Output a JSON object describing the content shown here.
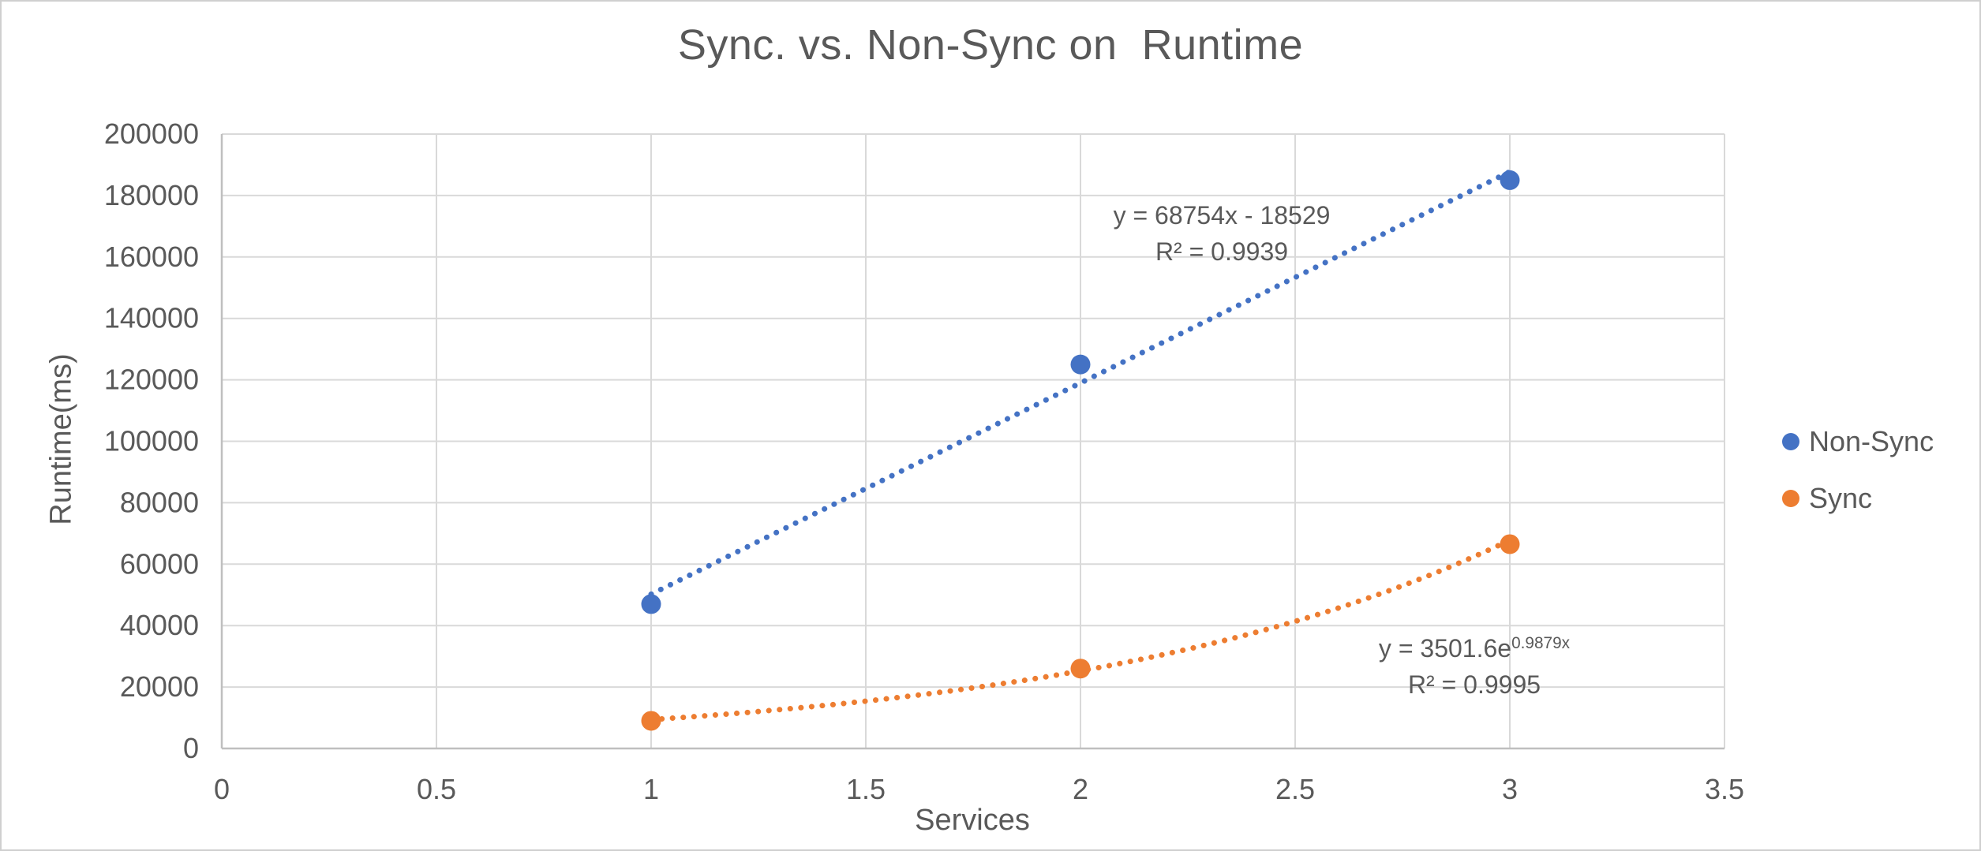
{
  "chart_data": {
    "type": "scatter",
    "title": "Sync. vs. Non-Sync on  Runtime",
    "xlabel": "Services",
    "ylabel": "Runtime(ms)",
    "xlim": [
      0,
      3.5
    ],
    "ylim": [
      0,
      200000
    ],
    "x_tick_labels": [
      "0",
      "0.5",
      "1",
      "1.5",
      "2",
      "2.5",
      "3",
      "3.5"
    ],
    "y_tick_labels": [
      "0",
      "20000",
      "40000",
      "60000",
      "80000",
      "100000",
      "120000",
      "140000",
      "160000",
      "180000",
      "200000"
    ],
    "grid": true,
    "legend_position": "right",
    "colors": {
      "gridline": "#D9D9D9",
      "axis_line": "#BFBFBF",
      "text": "#595959"
    },
    "series": [
      {
        "name": "Non-Sync",
        "color": "#4472C4",
        "x": [
          1,
          2,
          3
        ],
        "y": [
          47000,
          125000,
          185000
        ],
        "trendline": {
          "type": "linear",
          "slope": 68754,
          "intercept": -18529,
          "range": [
            1,
            3
          ],
          "style": "dotted"
        },
        "equation": "y = 68754x - 18529",
        "r_squared": "R² = 0.9939"
      },
      {
        "name": "Sync",
        "color": "#ED7D31",
        "x": [
          1,
          2,
          3
        ],
        "y": [
          9000,
          26000,
          66500
        ],
        "trendline": {
          "type": "exponential",
          "a": 3501.6,
          "b": 0.9879,
          "range": [
            1,
            3
          ],
          "style": "dotted"
        },
        "equation_base": "y = 3501.6e",
        "equation_exponent": "0.9879x",
        "r_squared": "R² = 0.9995"
      }
    ]
  }
}
